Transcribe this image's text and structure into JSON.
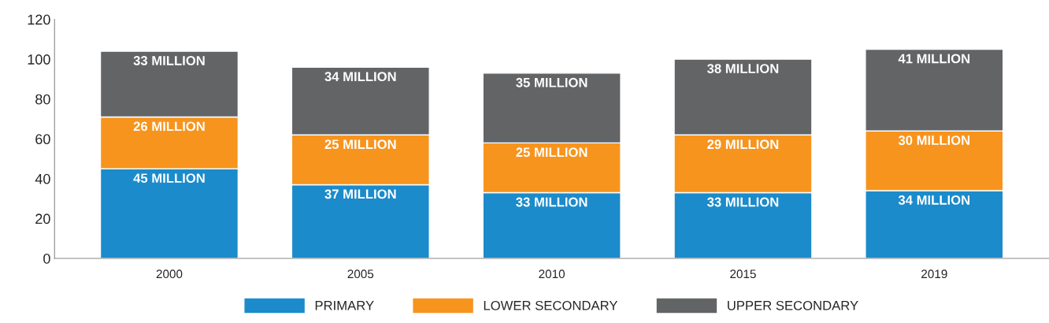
{
  "chart_data": {
    "type": "bar",
    "stacked": true,
    "categories": [
      "2000",
      "2005",
      "2010",
      "2015",
      "2019"
    ],
    "series": [
      {
        "name": "PRIMARY",
        "color": "#1b8bcb",
        "values": [
          45,
          37,
          33,
          33,
          34
        ],
        "value_labels": [
          "45 MILLION",
          "37 MILLION",
          "33 MILLION",
          "33 MILLION",
          "34 MILLION"
        ]
      },
      {
        "name": "LOWER SECONDARY",
        "color": "#f7941e",
        "values": [
          26,
          25,
          25,
          29,
          30
        ],
        "value_labels": [
          "26 MILLION",
          "25 MILLION",
          "25 MILLION",
          "29 MILLION",
          "30 MILLION"
        ]
      },
      {
        "name": "UPPER SECONDARY",
        "color": "#636466",
        "values": [
          33,
          34,
          35,
          38,
          41
        ],
        "value_labels": [
          "33 MILLION",
          "34 MILLION",
          "35 MILLION",
          "38 MILLION",
          "41 MILLION"
        ]
      }
    ],
    "ylim": [
      0,
      120
    ],
    "yticks": [
      0,
      20,
      40,
      60,
      80,
      100,
      120
    ],
    "grid": false,
    "legend": "bottom"
  }
}
